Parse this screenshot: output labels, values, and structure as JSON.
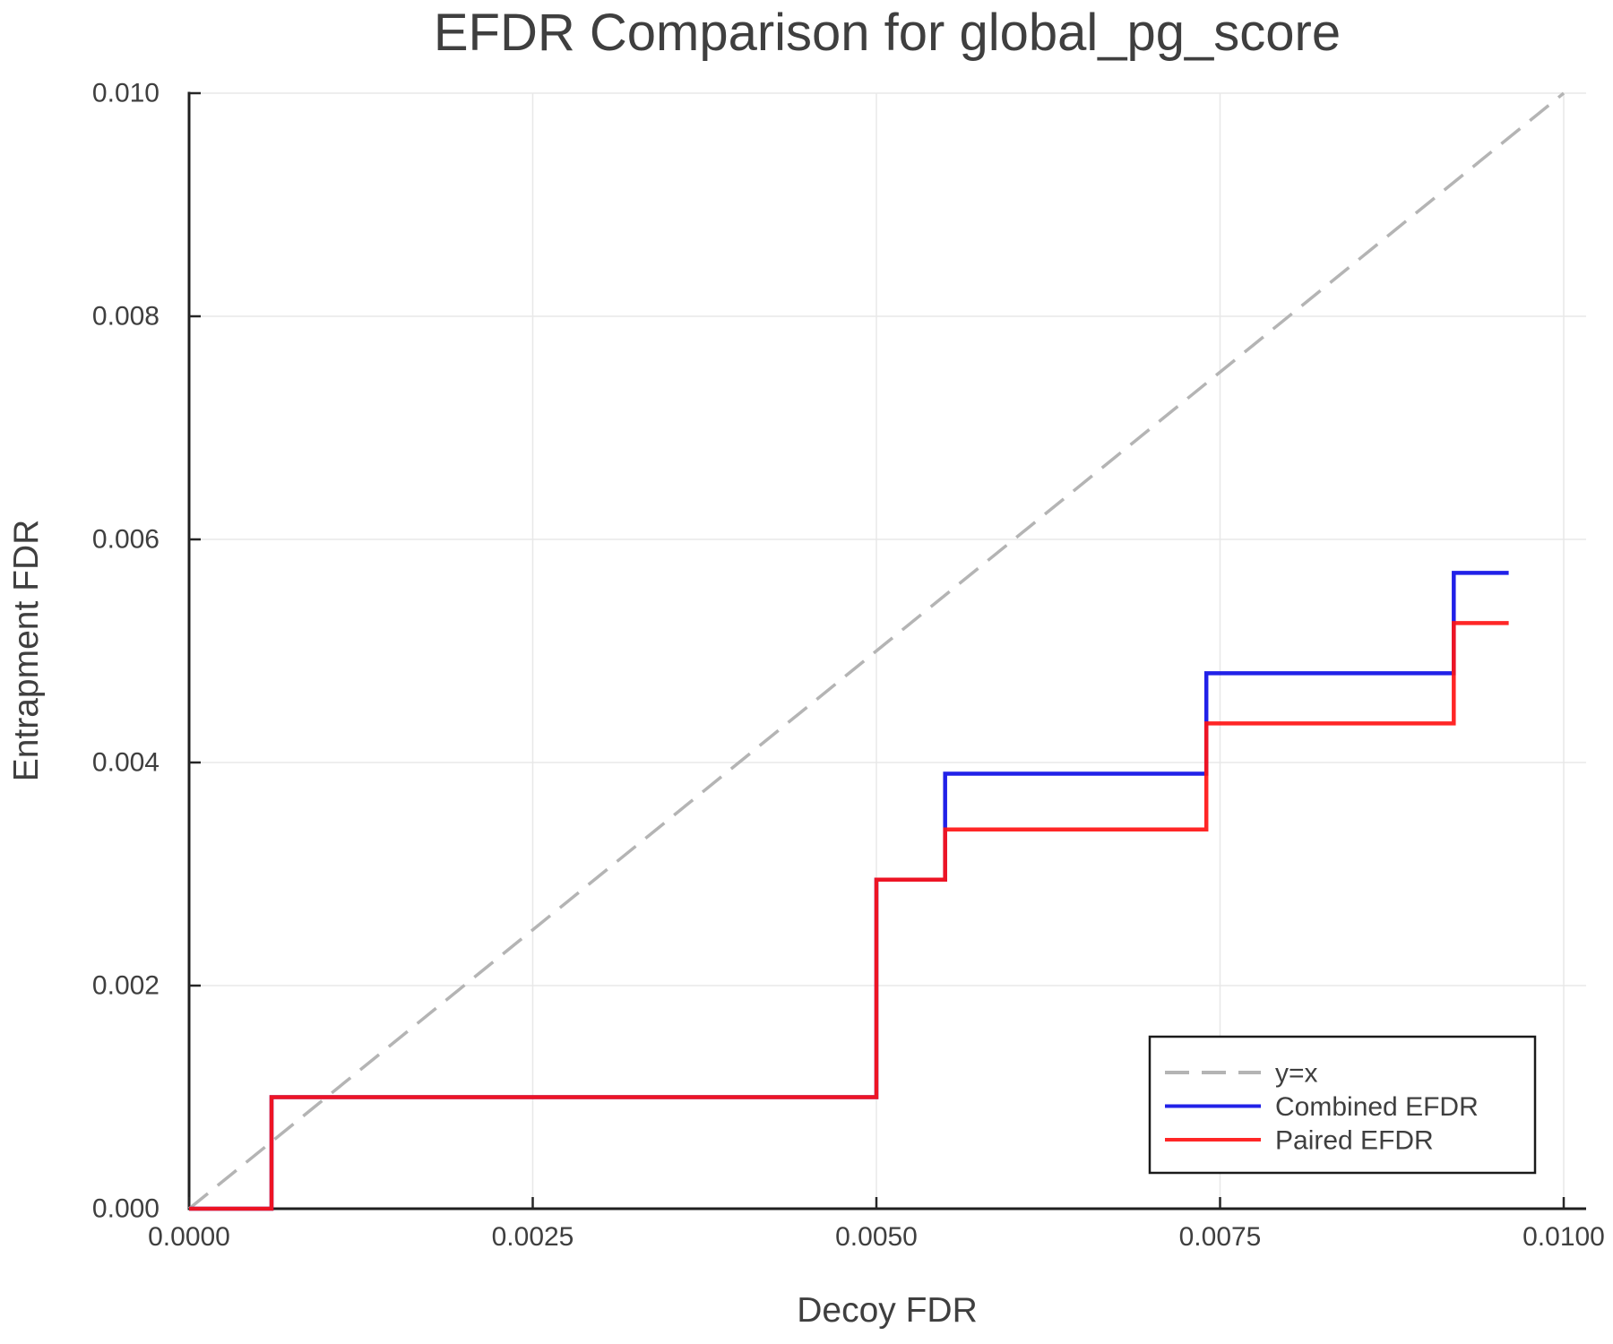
{
  "figure": {
    "title": "EFDR Comparison for global_pg_score",
    "xlabel": "Decoy FDR",
    "ylabel": "Entrapment FDR"
  },
  "colors": {
    "background": "#ffffff",
    "grid": "#e8e8e8",
    "spine": "#1f1f1f",
    "tick": "#262626",
    "text": "#3f3f3f",
    "legend_border": "#1a1a1a"
  },
  "axes": {
    "x_tick_labels": [
      "0.0000",
      "0.0025",
      "0.0050",
      "0.0075",
      "0.0100"
    ],
    "x_tick_values": [
      0,
      0.0025,
      0.005,
      0.0075,
      0.01
    ],
    "y_tick_labels": [
      "0.000",
      "0.002",
      "0.004",
      "0.006",
      "0.008",
      "0.010"
    ],
    "y_tick_values": [
      0,
      0.002,
      0.004,
      0.006,
      0.008,
      0.01
    ]
  },
  "legend": {
    "position": "lower right",
    "labels": [
      "y=x",
      "Combined EFDR",
      "Paired EFDR"
    ]
  },
  "chart_data": {
    "type": "line",
    "title": "EFDR Comparison for global_pg_score",
    "xlabel": "Decoy FDR",
    "ylabel": "Entrapment FDR",
    "xlim": [
      0,
      0.0102
    ],
    "ylim": [
      0,
      0.01
    ],
    "grid": true,
    "legend_position": "lower right",
    "series": [
      {
        "name": "y=x",
        "style": "dashed",
        "color": "#b4b4b4",
        "opacity": 1,
        "x": [
          0,
          0.01
        ],
        "y": [
          0,
          0.01
        ]
      },
      {
        "name": "Combined EFDR",
        "style": "solid",
        "color": "#1010e6",
        "opacity": 0.93,
        "x": [
          0,
          0.0006,
          0.0006,
          0.005,
          0.005,
          0.0055,
          0.0055,
          0.0074,
          0.0074,
          0.0092,
          0.0092,
          0.0096
        ],
        "y": [
          0,
          0,
          0.001,
          0.001,
          0.00295,
          0.00295,
          0.0039,
          0.0039,
          0.0048,
          0.0048,
          0.0057,
          0.0057
        ]
      },
      {
        "name": "Paired EFDR",
        "style": "solid",
        "color": "#ff1414",
        "opacity": 0.92,
        "x": [
          0,
          0.0006,
          0.0006,
          0.005,
          0.005,
          0.0055,
          0.0055,
          0.0074,
          0.0074,
          0.0092,
          0.0092,
          0.0096
        ],
        "y": [
          0,
          0,
          0.001,
          0.001,
          0.00295,
          0.00295,
          0.0034,
          0.0034,
          0.00435,
          0.00435,
          0.00525,
          0.00525
        ]
      }
    ]
  }
}
